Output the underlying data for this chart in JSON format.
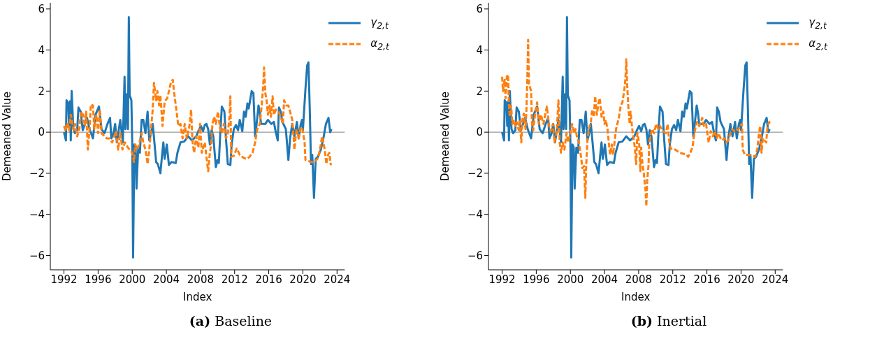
{
  "chart_data": [
    {
      "type": "line",
      "title": "(a) Baseline",
      "xlabel": "Index",
      "ylabel": "Demeaned Value",
      "xlim": [
        1990.4,
        2024.9
      ],
      "xticks": [
        1992,
        1996,
        2000,
        2004,
        2008,
        2012,
        2016,
        2020,
        2024
      ],
      "ylim": [
        -6.7,
        6.3
      ],
      "yticks": [
        -6,
        -4,
        -2,
        0,
        2,
        4,
        6
      ],
      "grid": false,
      "legend": "top right",
      "ref_lines": [
        {
          "axis": "y",
          "value": 0,
          "color": "#999999"
        }
      ],
      "series": [
        {
          "name": "γ$_{2,t}$",
          "color": "#1f77b4",
          "line_style": "solid",
          "x": [
            1992,
            1992.23,
            1992.3,
            1992.5,
            1992.6,
            1992.7,
            1992.8,
            1992.9,
            1993.1,
            1993.3,
            1993.55,
            1993.7,
            1993.96,
            1994.2,
            1994.7,
            1995.0,
            1995.4,
            1995.7,
            1996.1,
            1996.4,
            1996.75,
            1997.1,
            1997.4,
            1997.55,
            1997.8,
            1998.0,
            1998.2,
            1998.6,
            1998.9,
            1999.1,
            1999.2,
            1999.35,
            1999.5,
            1999.6,
            1999.7,
            1999.9,
            2000.0,
            2000.1,
            2000.25,
            2000.4,
            2000.5,
            2000.7,
            2000.9,
            2001.1,
            2001.3,
            2001.55,
            2001.8,
            2002.0,
            2002.2,
            2002.4,
            2002.6,
            2002.8,
            2003.0,
            2003.3,
            2003.5,
            2003.65,
            2003.8,
            2004.05,
            2004.3,
            2004.6,
            2005.1,
            2005.3,
            2005.65,
            2006.1,
            2006.55,
            2007.0,
            2007.5,
            2007.8,
            2008.05,
            2008.3,
            2008.5,
            2008.7,
            2008.9,
            2009.1,
            2009.3,
            2009.5,
            2009.8,
            2010.0,
            2010.15,
            2010.3,
            2010.5,
            2010.8,
            2011.0,
            2011.2,
            2011.5,
            2011.65,
            2011.9,
            2012.15,
            2012.4,
            2012.6,
            2012.9,
            2013.1,
            2013.3,
            2013.5,
            2013.65,
            2014.0,
            2014.2,
            2014.4,
            2014.55,
            2014.8,
            2014.95,
            2015.1,
            2015.6,
            2015.9,
            2016.3,
            2016.6,
            2016.8,
            2017.05,
            2017.2,
            2017.4,
            2017.6,
            2018.0,
            2018.3,
            2018.5,
            2018.75,
            2019.0,
            2019.3,
            2019.5,
            2019.75,
            2019.9,
            2020.0,
            2020.3,
            2020.5,
            2020.65,
            2020.8,
            2020.95,
            2021.1,
            2021.3,
            2021.5,
            2021.75,
            2022.1,
            2022.4,
            2022.7,
            2023.0,
            2023.2,
            2023.35
          ],
          "values": [
            0,
            -0.4,
            1.55,
            1.4,
            0.3,
            1.5,
            -0.4,
            2.0,
            0.15,
            -0.05,
            0.1,
            1.2,
            1.0,
            0.1,
            0.7,
            0.15,
            -0.3,
            0.85,
            1.25,
            0.15,
            -0.05,
            0.4,
            0.7,
            -0.3,
            -0.05,
            0.4,
            -0.5,
            0.6,
            -0.5,
            2.7,
            0.15,
            1.85,
            0.15,
            5.6,
            1.8,
            1.55,
            -0.5,
            -6.1,
            -0.6,
            -0.75,
            -2.75,
            -0.75,
            -1.0,
            0.6,
            0.6,
            -0.05,
            1.0,
            -0.4,
            -0.05,
            0.4,
            -0.5,
            -1.45,
            -1.55,
            -2.0,
            -1.1,
            -0.5,
            -1.3,
            -0.6,
            -1.6,
            -1.45,
            -1.5,
            -1.0,
            -0.5,
            -0.45,
            -0.2,
            -0.4,
            -0.2,
            0.1,
            0.3,
            0.05,
            0.35,
            0.4,
            0.15,
            -0.6,
            0.1,
            -0.2,
            -1.7,
            -1.35,
            -1.5,
            -0.2,
            1.25,
            1.0,
            -0.4,
            -1.55,
            -1.6,
            -0.6,
            0.15,
            0.35,
            0.1,
            0.6,
            0.05,
            1.0,
            0.75,
            1.4,
            1.15,
            2.0,
            1.9,
            -0.2,
            0.3,
            1.3,
            0.95,
            0.4,
            0.4,
            0.6,
            0.4,
            0.5,
            0.05,
            -0.4,
            1.2,
            1.0,
            0.5,
            0.15,
            -1.35,
            -0.3,
            0.4,
            -0.2,
            0.5,
            -0.3,
            0.4,
            0.6,
            0.1,
            2.1,
            3.25,
            3.4,
            1.2,
            -1.55,
            -1.1,
            -3.2,
            -1.3,
            -1.2,
            -0.85,
            -0.3,
            0.4,
            0.7,
            0.0,
            0.15
          ]
        },
        {
          "name": "α$_{2,t}$",
          "color": "#ff7f0e",
          "line_style": "dashed",
          "x": [
            1992,
            1992.2,
            1992.4,
            1992.6,
            1992.8,
            1993.0,
            1993.15,
            1993.3,
            1993.55,
            1993.8,
            1994.0,
            1994.25,
            1994.45,
            1994.6,
            1994.8,
            1995.0,
            1995.15,
            1995.4,
            1995.55,
            1995.8,
            1996.0,
            1996.2,
            1996.4,
            1996.75,
            1997.0,
            1997.3,
            1997.65,
            1997.9,
            1998.1,
            1998.35,
            1998.6,
            1998.85,
            1999.15,
            1999.5,
            1999.7,
            2000.0,
            2000.2,
            2000.35,
            2000.6,
            2000.85,
            2001.1,
            2001.3,
            2001.55,
            2001.8,
            2002.0,
            2002.2,
            2002.4,
            2002.55,
            2002.8,
            2002.95,
            2003.15,
            2003.3,
            2003.55,
            2003.8,
            2004.1,
            2004.3,
            2004.55,
            2004.75,
            2004.95,
            2005.2,
            2005.4,
            2005.65,
            2005.9,
            2006.15,
            2006.4,
            2006.7,
            2006.9,
            2007.05,
            2007.25,
            2007.5,
            2007.75,
            2007.95,
            2008.15,
            2008.5,
            2008.7,
            2008.9,
            2009.1,
            2009.25,
            2009.4,
            2009.6,
            2009.8,
            2010.05,
            2010.3,
            2010.5,
            2010.75,
            2011.0,
            2011.2,
            2011.4,
            2011.5,
            2011.6,
            2011.9,
            2012.25,
            2012.6,
            2013.05,
            2013.4,
            2013.75,
            2014.1,
            2014.4,
            2014.65,
            2014.95,
            2015.15,
            2015.35,
            2015.45,
            2015.6,
            2015.75,
            2015.9,
            2016.1,
            2016.25,
            2016.45,
            2016.6,
            2016.85,
            2017.15,
            2017.4,
            2017.65,
            2017.8,
            2018.05,
            2018.3,
            2018.5,
            2018.75,
            2018.9,
            2019.0,
            2019.25,
            2019.5,
            2019.75,
            2019.95,
            2020.2,
            2020.3,
            2020.9,
            2021.35,
            2021.8,
            2022.1,
            2022.25,
            2022.4,
            2022.55,
            2022.75,
            2022.95,
            2023.1,
            2023.25,
            2023.35
          ],
          "values": [
            0.3,
            0.05,
            0.45,
            0.1,
            0.85,
            0.4,
            0.1,
            0.4,
            -0.2,
            0.15,
            1.0,
            0.85,
            0.3,
            1.0,
            -0.85,
            0.15,
            1.35,
            1.3,
            0.15,
            0.85,
            -0.05,
            1.1,
            -0.05,
            -0.2,
            -0.3,
            -0.3,
            -0.5,
            -0.2,
            0.05,
            -0.85,
            -0.05,
            -0.85,
            -0.5,
            -0.75,
            -0.85,
            -1.0,
            -1.45,
            -0.6,
            -0.85,
            -0.5,
            -0.05,
            -0.5,
            -0.85,
            -1.55,
            -0.85,
            0.15,
            1.1,
            2.4,
            1.55,
            2.0,
            1.3,
            1.8,
            0.3,
            1.5,
            1.65,
            2.0,
            2.45,
            2.55,
            1.8,
            1.0,
            0.3,
            0.4,
            -0.3,
            0.4,
            -0.3,
            0.3,
            1.1,
            -0.4,
            -1.0,
            -0.2,
            -0.75,
            0.4,
            -1.0,
            -0.5,
            -1.2,
            -1.9,
            -1.0,
            -0.6,
            0.4,
            0.75,
            0.4,
            1.0,
            0.15,
            -0.05,
            0.4,
            -0.3,
            -0.05,
            0.75,
            1.75,
            -1.2,
            -1.15,
            -0.8,
            -1.1,
            -1.25,
            -1.3,
            -1.2,
            -1.0,
            -0.5,
            0.15,
            0.4,
            1.2,
            2.25,
            3.15,
            1.9,
            1.55,
            0.85,
            1.3,
            0.75,
            1.75,
            0.85,
            1.1,
            1.0,
            0.75,
            0.4,
            1.55,
            1.3,
            1.3,
            1.0,
            0.6,
            -0.2,
            -0.85,
            0.15,
            -0.3,
            0.25,
            0.15,
            -0.5,
            -1.35,
            -1.45,
            -1.45,
            -1.25,
            -0.6,
            -0.2,
            -0.5,
            -0.85,
            -1.55,
            -1.1,
            -1.0,
            -1.55,
            -1.6
          ]
        }
      ]
    },
    {
      "type": "line",
      "title": "(b) Inertial",
      "xlabel": "Index",
      "ylabel": "Demeaned Value",
      "xlim": [
        1990.4,
        2024.9
      ],
      "xticks": [
        1992,
        1996,
        2000,
        2004,
        2008,
        2012,
        2016,
        2020,
        2024
      ],
      "ylim": [
        -6.7,
        6.3
      ],
      "yticks": [
        -6,
        -4,
        -2,
        0,
        2,
        4,
        6
      ],
      "grid": false,
      "legend": "top right",
      "ref_lines": [
        {
          "axis": "y",
          "value": 0,
          "color": "#999999"
        }
      ],
      "series": [
        {
          "name": "γ$_{2,t}$",
          "color": "#1f77b4",
          "line_style": "solid",
          "x": [
            1992,
            1992.23,
            1992.3,
            1992.5,
            1992.6,
            1992.7,
            1992.8,
            1992.9,
            1993.1,
            1993.3,
            1993.55,
            1993.7,
            1993.96,
            1994.2,
            1994.7,
            1995.0,
            1995.4,
            1995.7,
            1996.1,
            1996.4,
            1996.75,
            1997.1,
            1997.4,
            1997.55,
            1997.8,
            1998.0,
            1998.2,
            1998.6,
            1998.9,
            1999.1,
            1999.2,
            1999.35,
            1999.5,
            1999.6,
            1999.7,
            1999.9,
            2000.0,
            2000.1,
            2000.25,
            2000.4,
            2000.5,
            2000.7,
            2000.9,
            2001.1,
            2001.3,
            2001.55,
            2001.8,
            2002.0,
            2002.2,
            2002.4,
            2002.6,
            2002.8,
            2003.0,
            2003.3,
            2003.5,
            2003.65,
            2003.8,
            2004.05,
            2004.3,
            2004.6,
            2005.1,
            2005.3,
            2005.65,
            2006.1,
            2006.55,
            2007.0,
            2007.5,
            2007.8,
            2008.05,
            2008.3,
            2008.5,
            2008.7,
            2008.9,
            2009.1,
            2009.3,
            2009.5,
            2009.8,
            2010.0,
            2010.15,
            2010.3,
            2010.5,
            2010.8,
            2011.0,
            2011.2,
            2011.5,
            2011.65,
            2011.9,
            2012.15,
            2012.4,
            2012.6,
            2012.9,
            2013.1,
            2013.3,
            2013.5,
            2013.65,
            2014.0,
            2014.2,
            2014.4,
            2014.55,
            2014.8,
            2014.95,
            2015.1,
            2015.6,
            2015.9,
            2016.3,
            2016.6,
            2016.8,
            2017.05,
            2017.2,
            2017.4,
            2017.6,
            2018.0,
            2018.3,
            2018.5,
            2018.75,
            2019.0,
            2019.3,
            2019.5,
            2019.75,
            2019.9,
            2020.0,
            2020.3,
            2020.5,
            2020.65,
            2020.8,
            2020.95,
            2021.1,
            2021.3,
            2021.5,
            2021.75,
            2022.1,
            2022.4,
            2022.7,
            2023.0,
            2023.2,
            2023.35
          ],
          "values": [
            0,
            -0.4,
            1.55,
            1.4,
            0.3,
            1.5,
            -0.4,
            2.0,
            0.15,
            -0.05,
            0.1,
            1.2,
            1.0,
            0.1,
            0.7,
            0.15,
            -0.3,
            0.85,
            1.25,
            0.15,
            -0.05,
            0.4,
            0.7,
            -0.3,
            -0.05,
            0.4,
            -0.5,
            0.6,
            -0.5,
            2.7,
            0.15,
            1.85,
            0.15,
            5.6,
            1.8,
            1.55,
            -0.5,
            -6.1,
            -0.6,
            -0.75,
            -2.75,
            -0.75,
            -1.0,
            0.6,
            0.6,
            -0.05,
            1.0,
            -0.4,
            -0.05,
            0.4,
            -0.5,
            -1.45,
            -1.55,
            -2.0,
            -1.1,
            -0.5,
            -1.3,
            -0.6,
            -1.6,
            -1.45,
            -1.5,
            -1.0,
            -0.5,
            -0.45,
            -0.2,
            -0.4,
            -0.2,
            0.1,
            0.3,
            0.05,
            0.35,
            0.4,
            0.15,
            -0.6,
            0.1,
            -0.2,
            -1.7,
            -1.35,
            -1.5,
            -0.2,
            1.25,
            1.0,
            -0.4,
            -1.55,
            -1.6,
            -0.6,
            0.15,
            0.35,
            0.1,
            0.6,
            0.05,
            1.0,
            0.75,
            1.4,
            1.15,
            2.0,
            1.9,
            -0.2,
            0.3,
            1.3,
            0.95,
            0.4,
            0.4,
            0.6,
            0.4,
            0.5,
            0.05,
            -0.4,
            1.2,
            1.0,
            0.5,
            0.15,
            -1.35,
            -0.3,
            0.4,
            -0.2,
            0.5,
            -0.3,
            0.4,
            0.6,
            0.1,
            2.1,
            3.25,
            3.4,
            1.2,
            -1.55,
            -1.1,
            -3.2,
            -1.3,
            -1.2,
            -0.85,
            -0.3,
            0.4,
            0.7,
            0.0,
            0.15
          ]
        },
        {
          "name": "α$_{2,t}$",
          "color": "#ff7f0e",
          "line_style": "dashed",
          "x": [
            1992,
            1992.1,
            1992.3,
            1992.4,
            1992.55,
            1992.7,
            1992.8,
            1992.9,
            1993.05,
            1993.2,
            1993.35,
            1993.55,
            1993.7,
            1993.95,
            1994.05,
            1994.25,
            1994.4,
            1994.55,
            1994.75,
            1994.85,
            1994.95,
            1995.05,
            1995.15,
            1995.4,
            1995.5,
            1995.65,
            1995.85,
            1996.1,
            1996.3,
            1996.55,
            1996.85,
            1997.0,
            1997.25,
            1997.5,
            1997.7,
            1997.95,
            1998.15,
            1998.4,
            1998.6,
            1998.75,
            1998.9,
            1999.1,
            1999.3,
            1999.55,
            1999.75,
            2000.0,
            2000.2,
            2000.45,
            2000.6,
            2000.8,
            2001.0,
            2001.25,
            2001.4,
            2001.6,
            2001.75,
            2001.85,
            2002.0,
            2002.15,
            2002.4,
            2002.55,
            2002.75,
            2002.9,
            2003.1,
            2003.3,
            2003.45,
            2003.65,
            2003.85,
            2004.0,
            2004.15,
            2004.35,
            2004.5,
            2004.65,
            2004.85,
            2005.0,
            2005.2,
            2005.35,
            2005.5,
            2005.7,
            2005.9,
            2006.1,
            2006.3,
            2006.4,
            2006.5,
            2006.55,
            2006.65,
            2006.8,
            2006.95,
            2007.05,
            2007.25,
            2007.4,
            2007.55,
            2007.7,
            2007.85,
            2008.05,
            2008.2,
            2008.3,
            2008.45,
            2008.6,
            2008.8,
            2008.9,
            2009.0,
            2009.15,
            2009.25,
            2009.45,
            2009.6,
            2009.8,
            2010.05,
            2010.3,
            2010.5,
            2010.85,
            2011.2,
            2011.4,
            2011.6,
            2011.75,
            2012.1,
            2012.45,
            2012.8,
            2013.25,
            2013.6,
            2013.8,
            2014.05,
            2014.3,
            2014.45,
            2014.6,
            2014.85,
            2015.1,
            2015.3,
            2015.45,
            2015.65,
            2015.9,
            2016.05,
            2016.2,
            2016.45,
            2016.7,
            2016.9,
            2017.15,
            2017.35,
            2017.6,
            2017.8,
            2018.05,
            2018.25,
            2018.5,
            2018.75,
            2018.95,
            2019.2,
            2019.4,
            2019.65,
            2019.9,
            2020.1,
            2020.2,
            2020.45,
            2020.9,
            2021.35,
            2021.65,
            2021.9,
            2022.1,
            2022.25,
            2022.4,
            2022.55,
            2022.75,
            2022.95,
            2023.1,
            2023.3,
            2023.4
          ],
          "values": [
            2.7,
            2.0,
            2.55,
            1.65,
            2.7,
            2.8,
            1.3,
            0.75,
            1.3,
            0.4,
            0.6,
            0.3,
            0.5,
            0.1,
            0.6,
            -0.5,
            0.75,
            0.9,
            0.15,
            1.1,
            2.55,
            4.5,
            2.35,
            2.0,
            0.4,
            0.1,
            0.85,
            1.45,
            0.4,
            0.85,
            0.4,
            0.75,
            1.25,
            0.3,
            0.05,
            0.4,
            -0.5,
            0.05,
            1.55,
            -0.5,
            -1.0,
            -0.5,
            -0.85,
            -0.05,
            -0.5,
            -0.05,
            0.4,
            -0.05,
            0.15,
            -0.3,
            -0.5,
            -1.2,
            -1.75,
            -1.65,
            -3.2,
            -1.65,
            -0.4,
            0.15,
            0.5,
            1.1,
            0.75,
            1.75,
            0.85,
            1.45,
            1.65,
            0.75,
            1.0,
            0.4,
            0.6,
            0.15,
            -0.5,
            -1.1,
            -0.6,
            -1.1,
            -0.4,
            0.15,
            0.4,
            0.75,
            1.3,
            1.45,
            2.0,
            2.35,
            3.0,
            3.55,
            2.35,
            1.2,
            0.4,
            1.0,
            0.15,
            -0.3,
            -0.75,
            -1.55,
            -0.05,
            -0.5,
            -1.9,
            -0.75,
            -1.55,
            -2.0,
            -2.8,
            -3.6,
            -2.35,
            -1.65,
            -0.5,
            -0.05,
            0.15,
            -0.05,
            0.4,
            0.15,
            0.3,
            0.05,
            -0.05,
            0.4,
            -0.5,
            -0.8,
            -0.8,
            -0.9,
            -1.0,
            -1.05,
            -1.1,
            -1.2,
            -1.0,
            -0.75,
            -0.3,
            0.1,
            0.5,
            0.3,
            0.5,
            0.7,
            0.3,
            0.4,
            -0.05,
            -0.5,
            0.05,
            -0.2,
            0.05,
            -0.3,
            -0.05,
            -0.3,
            -0.4,
            -0.3,
            -0.5,
            -0.4,
            -0.05,
            0.15,
            0.05,
            0.15,
            0.1,
            0.3,
            0.4,
            -0.85,
            -1.1,
            -1.1,
            -1.15,
            -1.2,
            -0.85,
            -0.05,
            0.3,
            -1.0,
            -0.3,
            -0.4,
            -0.5,
            0.3,
            0.5,
            0.35
          ]
        }
      ]
    }
  ]
}
